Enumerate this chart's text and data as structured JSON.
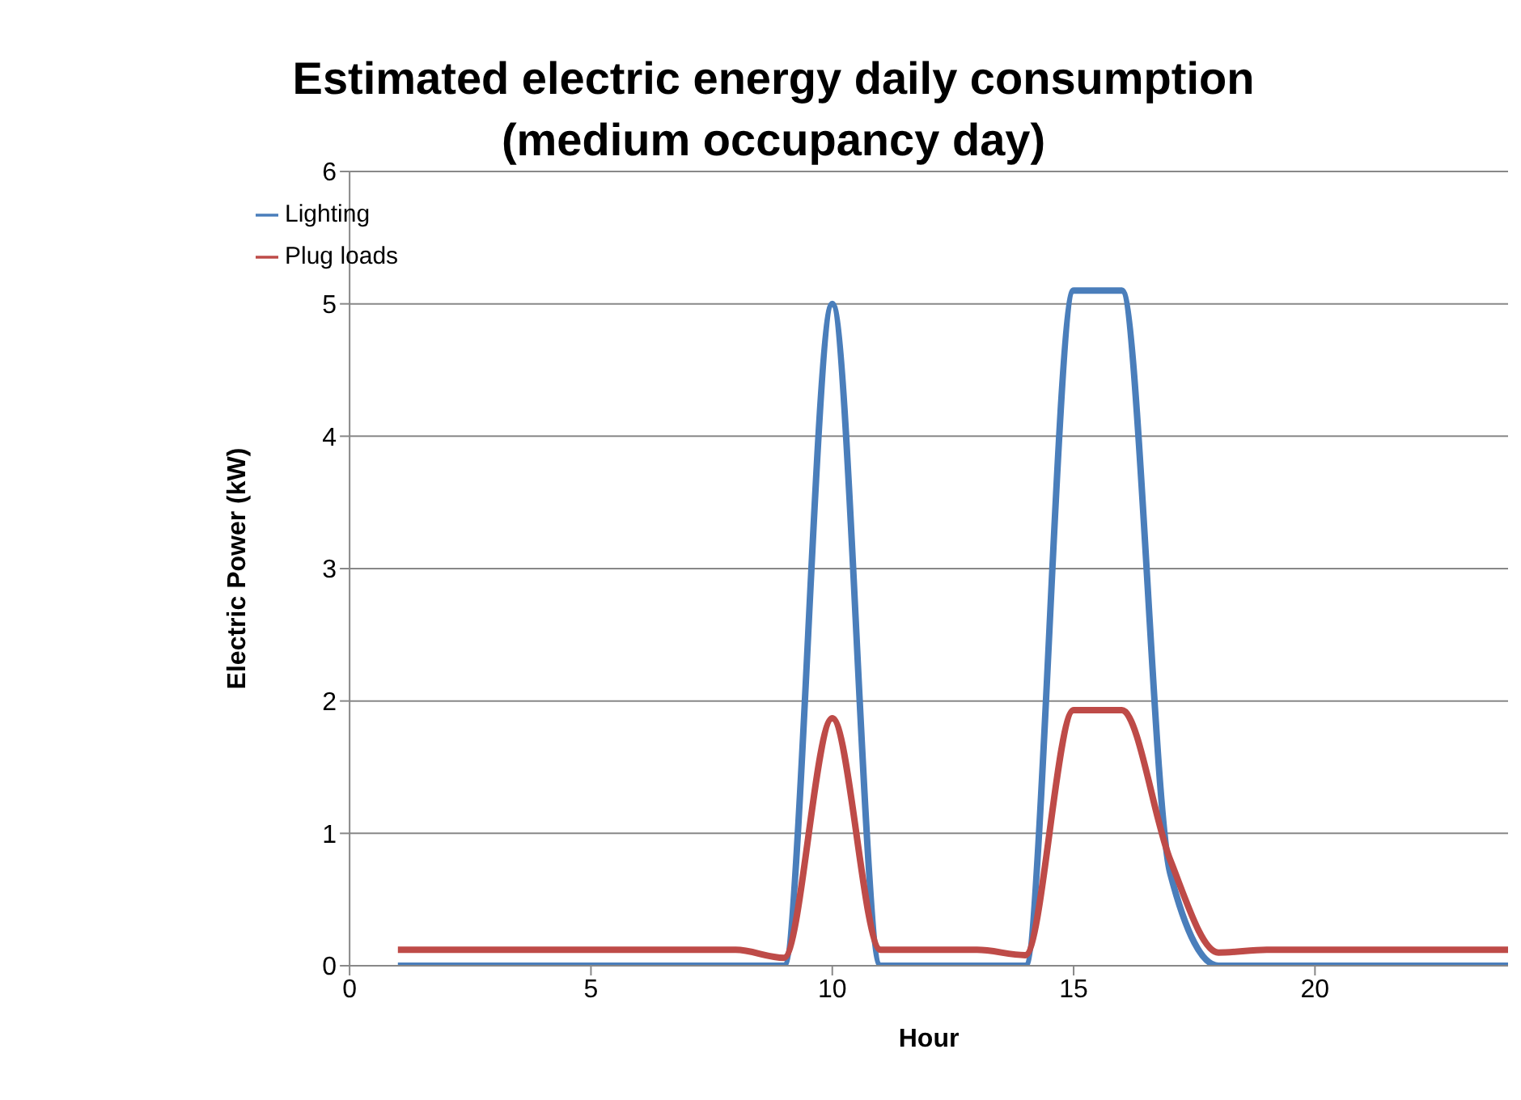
{
  "chart_data": {
    "type": "line",
    "title": "Estimated electric energy daily consumption (medium occupancy day)",
    "xlabel": "Hour",
    "ylabel": "Electric Power (kW)",
    "x": [
      1,
      2,
      3,
      4,
      5,
      6,
      7,
      8,
      9,
      10,
      11,
      12,
      13,
      14,
      15,
      16,
      17,
      18,
      19,
      20,
      21,
      22,
      23,
      24
    ],
    "series": [
      {
        "name": "Lighting",
        "color": "#4a7ebb",
        "values": [
          0,
          0,
          0,
          0,
          0,
          0,
          0,
          0,
          0,
          5,
          0,
          0,
          0,
          0,
          5.1,
          5.1,
          0.7,
          0,
          0,
          0,
          0,
          0,
          0,
          0
        ]
      },
      {
        "name": "Plug loads",
        "color": "#be4b48",
        "values": [
          0.12,
          0.12,
          0.12,
          0.12,
          0.12,
          0.12,
          0.12,
          0.12,
          0.06,
          1.87,
          0.12,
          0.12,
          0.12,
          0.08,
          1.93,
          1.93,
          0.8,
          0.1,
          0.12,
          0.12,
          0.12,
          0.12,
          0.12,
          0.12
        ]
      }
    ],
    "xlim": [
      0,
      24
    ],
    "xticks": [
      0,
      5,
      10,
      15,
      20
    ],
    "ylim": [
      0,
      6
    ],
    "yticks": [
      0,
      1,
      2,
      3,
      4,
      5,
      6
    ],
    "grid": "y",
    "legend": "top left",
    "marker": "none",
    "line_style": "solid"
  }
}
